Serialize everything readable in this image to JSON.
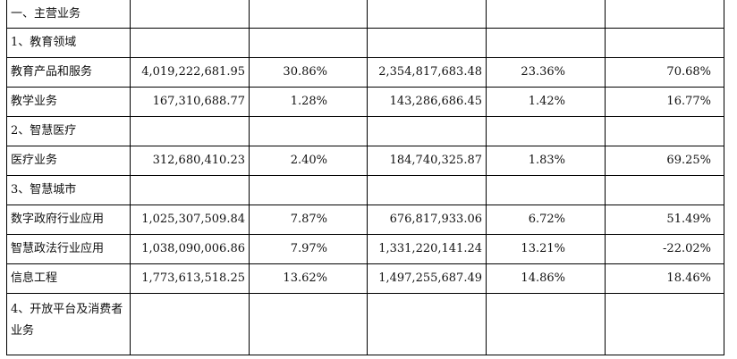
{
  "table": {
    "rows": [
      {
        "kind": "section",
        "label": "一、主营业务"
      },
      {
        "kind": "section",
        "label": "1、教育领域"
      },
      {
        "kind": "data",
        "label": "教育产品和服务",
        "revenue": "4,019,222,681.95",
        "revenue_share": "30.86%",
        "cost": "2,354,817,683.48",
        "cost_share": "23.36%",
        "margin": "70.68%"
      },
      {
        "kind": "data",
        "label": "教学业务",
        "revenue": "167,310,688.77",
        "revenue_share": "1.28%",
        "cost": "143,286,686.45",
        "cost_share": "1.42%",
        "margin": "16.77%"
      },
      {
        "kind": "section",
        "label": "2、智慧医疗"
      },
      {
        "kind": "data",
        "label": "医疗业务",
        "revenue": "312,680,410.23",
        "revenue_share": "2.40%",
        "cost": "184,740,325.87",
        "cost_share": "1.83%",
        "margin": "69.25%"
      },
      {
        "kind": "section",
        "label": "3、智慧城市"
      },
      {
        "kind": "data",
        "label": "数字政府行业应用",
        "revenue": "1,025,307,509.84",
        "revenue_share": "7.87%",
        "cost": "676,817,933.06",
        "cost_share": "6.72%",
        "margin": "51.49%"
      },
      {
        "kind": "data",
        "label": "智慧政法行业应用",
        "revenue": "1,038,090,006.86",
        "revenue_share": "7.97%",
        "cost": "1,331,220,141.24",
        "cost_share": "13.21%",
        "margin": "-22.02%"
      },
      {
        "kind": "data",
        "label": "信息工程",
        "revenue": "1,773,613,518.25",
        "revenue_share": "13.62%",
        "cost": "1,497,255,687.49",
        "cost_share": "14.86%",
        "margin": "18.46%"
      },
      {
        "kind": "section",
        "label": "4、开放平台及消费者业务"
      }
    ]
  }
}
